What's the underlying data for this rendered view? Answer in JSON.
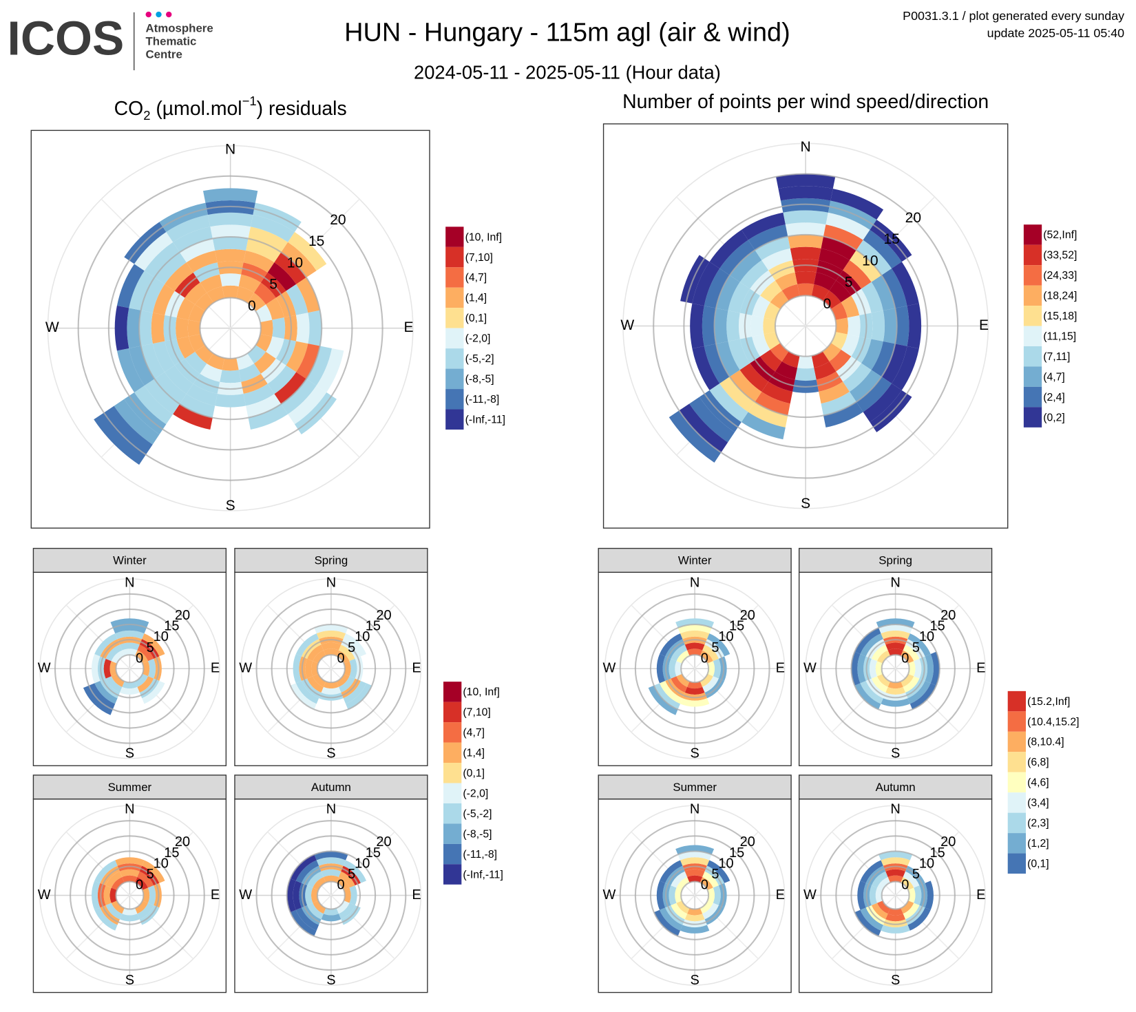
{
  "header": {
    "logo": "ICOS",
    "org": [
      "Atmosphere",
      "Thematic",
      "Centre"
    ],
    "title": "HUN - Hungary - 115m agl (air & wind)",
    "subtitle": "2024-05-11 - 2025-05-11 (Hour data)",
    "notes": [
      "P0031.3.1 / plot generated every sunday",
      "update  2025-05-11 05:40"
    ]
  },
  "legends": [
    {
      "labels": [
        "(10, Inf]",
        "(7,10]",
        "(4,7]",
        "(1,4]",
        "(0,1]",
        "(-2,0]",
        "(-5,-2]",
        "(-8,-5]",
        "(-11,-8]",
        "(-Inf,-11]"
      ],
      "colors": [
        "#a50026",
        "#d73027",
        "#f46d43",
        "#fdae61",
        "#fee090",
        "#e0f3f8",
        "#abd9e9",
        "#74add1",
        "#4575b4",
        "#313695"
      ]
    },
    {
      "labels": [
        "(52,Inf]",
        "(33,52]",
        "(24,33]",
        "(18,24]",
        "(15,18]",
        "(11,15]",
        "(7,11]",
        "(4,7]",
        "(2,4]",
        "(0,2]"
      ],
      "colors": [
        "#a50026",
        "#d73027",
        "#f46d43",
        "#fdae61",
        "#fee090",
        "#e0f3f8",
        "#abd9e9",
        "#74add1",
        "#4575b4",
        "#313695"
      ]
    },
    {
      "labels": [
        "(10, Inf]",
        "(7,10]",
        "(4,7]",
        "(1,4]",
        "(0,1]",
        "(-2,0]",
        "(-5,-2]",
        "(-8,-5]",
        "(-11,-8]",
        "(-Inf,-11]"
      ],
      "colors": [
        "#a50026",
        "#d73027",
        "#f46d43",
        "#fdae61",
        "#fee090",
        "#e0f3f8",
        "#abd9e9",
        "#74add1",
        "#4575b4",
        "#313695"
      ]
    },
    {
      "labels": [
        "(15.2,Inf]",
        "(10.4,15.2]",
        "(8,10.4]",
        "(6,8]",
        "(4,6]",
        "(3,4]",
        "(2,3]",
        "(1,2]",
        "(0,1]"
      ],
      "colors": [
        "#d73027",
        "#f46d43",
        "#fdae61",
        "#fee090",
        "#ffffbf",
        "#e0f3f8",
        "#abd9e9",
        "#74add1",
        "#4575b4"
      ]
    }
  ],
  "chart_data": [
    {
      "type": "polar",
      "title_parts": [
        "CO",
        "2",
        " (µmol.mol",
        "−1",
        ") residuals"
      ],
      "legend": 0,
      "rlim": [
        0,
        25
      ],
      "rticks": [
        0,
        5,
        10,
        15,
        20
      ],
      "compass": [
        "N",
        "E",
        "S",
        "W"
      ],
      "bin_width": 2,
      "cells": [
        [
          3,
          5,
          3,
          3,
          6,
          5,
          6,
          8,
          7
        ],
        [
          3,
          3,
          2,
          3,
          4,
          4,
          6,
          6
        ],
        [
          3,
          2,
          1,
          0,
          1,
          3,
          4
        ],
        [
          5,
          3,
          3,
          6,
          3
        ],
        [
          3,
          6,
          3,
          5,
          6
        ],
        [
          3,
          5,
          6,
          3,
          2,
          6,
          5
        ],
        [
          6,
          3,
          5,
          6,
          1,
          6,
          5,
          6
        ],
        [
          5,
          6,
          3,
          6,
          5,
          6
        ],
        [
          3,
          6,
          5,
          6
        ],
        [
          3,
          5,
          6,
          6,
          6,
          1
        ],
        [
          3,
          6,
          6,
          6,
          6,
          6,
          6,
          7,
          7,
          8,
          8
        ],
        [
          3,
          3,
          6,
          6,
          6,
          7,
          7
        ],
        [
          3,
          3,
          6,
          3,
          6,
          7,
          9
        ],
        [
          3,
          3,
          5,
          3,
          6,
          6,
          8
        ],
        [
          3,
          3,
          1,
          3,
          6,
          6,
          5,
          8
        ],
        [
          3,
          3,
          6,
          3,
          5,
          6,
          6,
          7
        ]
      ]
    },
    {
      "type": "polar",
      "title": "Number of points per wind speed/direction",
      "legend": 1,
      "rlim": [
        0,
        25
      ],
      "rticks": [
        0,
        5,
        10,
        15,
        20
      ],
      "compass": [
        "N",
        "E",
        "S",
        "W"
      ],
      "bin_width": 2,
      "cells": [
        [
          2,
          1,
          1,
          1,
          3,
          5,
          6,
          8,
          9,
          9
        ],
        [
          1,
          0,
          0,
          0,
          0,
          2,
          5,
          7,
          9
        ],
        [
          1,
          0,
          0,
          2,
          4,
          6,
          8,
          9
        ],
        [
          2,
          3,
          5,
          6,
          7,
          8,
          9
        ],
        [
          3,
          5,
          6,
          6,
          7,
          8,
          9
        ],
        [
          4,
          5,
          6,
          7,
          8,
          9,
          9
        ],
        [
          3,
          2,
          5,
          6,
          7,
          8,
          9,
          9
        ],
        [
          1,
          1,
          2,
          3,
          6,
          8
        ],
        [
          5,
          6,
          8
        ],
        [
          1,
          0,
          0,
          1,
          2,
          4,
          7
        ],
        [
          2,
          1,
          0,
          1,
          3,
          4,
          6,
          8,
          8,
          9,
          8
        ],
        [
          4,
          5,
          6,
          6,
          7,
          8,
          9
        ],
        [
          4,
          5,
          5,
          6,
          7,
          8,
          9
        ],
        [
          4,
          5,
          6,
          6,
          7,
          8,
          9,
          9
        ],
        [
          3,
          4,
          5,
          6,
          7,
          8,
          9
        ],
        [
          2,
          3,
          4,
          5,
          6,
          8,
          9
        ]
      ]
    },
    {
      "type": "polar",
      "title": "Winter",
      "legend": 2,
      "rlim": [
        0,
        25
      ],
      "rticks": [
        0,
        5,
        10,
        15,
        20
      ],
      "compass": [
        "N",
        "E",
        "S",
        "W"
      ],
      "bin_width": 2,
      "cells": [
        [
          5,
          6,
          3,
          6,
          7,
          7
        ],
        [
          3,
          2,
          1,
          3
        ],
        [
          3,
          6,
          3
        ],
        [
          6,
          3,
          6,
          5
        ],
        [
          6,
          5
        ],
        [
          3,
          6,
          6,
          7,
          8,
          8
        ],
        [
          3,
          1,
          6,
          5
        ],
        [
          5,
          6,
          3,
          6
        ]
      ]
    },
    {
      "type": "polar",
      "title": "Spring",
      "legend": 2,
      "rlim": [
        0,
        25
      ],
      "rticks": [
        0,
        5,
        10,
        15,
        20
      ],
      "compass": [
        "N",
        "E",
        "S",
        "W"
      ],
      "bin_width": 2,
      "cells": [
        [
          3,
          3,
          3,
          4,
          5
        ],
        [
          3,
          4,
          5,
          5
        ],
        [
          3,
          6,
          5
        ],
        [
          3,
          6,
          3,
          6,
          6
        ],
        [
          3,
          5,
          6
        ],
        [
          3,
          3,
          6,
          6,
          5
        ],
        [
          3,
          3,
          3,
          6
        ],
        [
          3,
          3,
          4,
          6
        ]
      ]
    },
    {
      "type": "polar",
      "title": "Summer",
      "legend": 2,
      "rlim": [
        0,
        25
      ],
      "rticks": [
        0,
        5,
        10,
        15,
        20
      ],
      "compass": [
        "N",
        "E",
        "S",
        "W"
      ],
      "bin_width": 2,
      "cells": [
        [
          2,
          3,
          2,
          3
        ],
        [
          1,
          2,
          1,
          3
        ],
        [
          3,
          6,
          3
        ],
        [
          3,
          6,
          6
        ],
        [
          5,
          6
        ],
        [
          3,
          6,
          3,
          6
        ],
        [
          1,
          3,
          2,
          6
        ],
        [
          2,
          3,
          3,
          6
        ]
      ]
    },
    {
      "type": "polar",
      "title": "Autumn",
      "legend": 2,
      "rlim": [
        0,
        25
      ],
      "rticks": [
        0,
        5,
        10,
        15,
        20
      ],
      "compass": [
        "N",
        "E",
        "S",
        "W"
      ],
      "bin_width": 2,
      "cells": [
        [
          3,
          6,
          3,
          6,
          8
        ],
        [
          3,
          3,
          1,
          6
        ],
        [
          3,
          6
        ],
        [
          5,
          6,
          6
        ],
        [
          6,
          7
        ],
        [
          3,
          6,
          7,
          8,
          8
        ],
        [
          3,
          6,
          8,
          9,
          9
        ],
        [
          3,
          6,
          7,
          8,
          9
        ]
      ]
    },
    {
      "type": "polar",
      "title": "Winter",
      "legend": 3,
      "rlim": [
        0,
        25
      ],
      "rticks": [
        0,
        5,
        10,
        15,
        20
      ],
      "compass": [
        "N",
        "E",
        "S",
        "W"
      ],
      "bin_width": 2,
      "cells": [
        [
          1,
          0,
          2,
          3,
          4,
          6
        ],
        [
          2,
          3,
          5,
          7
        ],
        [
          4,
          6,
          7
        ],
        [
          3,
          5,
          7
        ],
        [
          1,
          0,
          2,
          4
        ],
        [
          2,
          1,
          2,
          4,
          6,
          7
        ],
        [
          5,
          6,
          7,
          8
        ],
        [
          4,
          6,
          7,
          8
        ]
      ]
    },
    {
      "type": "polar",
      "title": "Spring",
      "legend": 3,
      "rlim": [
        0,
        25
      ],
      "rticks": [
        0,
        5,
        10,
        15,
        20
      ],
      "compass": [
        "N",
        "E",
        "S",
        "W"
      ],
      "bin_width": 2,
      "cells": [
        [
          0,
          0,
          1,
          3,
          5,
          7
        ],
        [
          2,
          4,
          5,
          7
        ],
        [
          4,
          5,
          6,
          7,
          8
        ],
        [
          3,
          4,
          6,
          7,
          8
        ],
        [
          2,
          3,
          5,
          7
        ],
        [
          3,
          4,
          5,
          6,
          7
        ],
        [
          4,
          5,
          6,
          7,
          8
        ],
        [
          3,
          4,
          5,
          7,
          8
        ]
      ]
    },
    {
      "type": "polar",
      "title": "Summer",
      "legend": 3,
      "rlim": [
        0,
        25
      ],
      "rticks": [
        0,
        5,
        10,
        15,
        20
      ],
      "compass": [
        "N",
        "E",
        "S",
        "W"
      ],
      "bin_width": 2,
      "cells": [
        [
          0,
          1,
          1,
          3,
          5,
          7
        ],
        [
          2,
          4,
          6,
          8
        ],
        [
          4,
          6,
          7
        ],
        [
          4,
          5,
          7
        ],
        [
          2,
          3,
          5,
          7
        ],
        [
          3,
          4,
          6,
          7,
          8
        ],
        [
          4,
          6,
          7,
          8
        ],
        [
          4,
          5,
          7,
          8
        ]
      ]
    },
    {
      "type": "polar",
      "title": "Autumn",
      "legend": 3,
      "rlim": [
        0,
        25
      ],
      "rticks": [
        0,
        5,
        10,
        15,
        20
      ],
      "compass": [
        "N",
        "E",
        "S",
        "W"
      ],
      "bin_width": 2,
      "cells": [
        [
          1,
          0,
          1,
          3,
          6
        ],
        [
          3,
          5,
          7
        ],
        [
          4,
          6,
          7,
          8
        ],
        [
          2,
          4,
          6,
          8
        ],
        [
          1,
          1,
          3,
          6
        ],
        [
          1,
          2,
          4,
          7,
          8
        ],
        [
          5,
          6,
          7,
          8
        ],
        [
          5,
          6,
          7,
          8
        ]
      ]
    }
  ]
}
